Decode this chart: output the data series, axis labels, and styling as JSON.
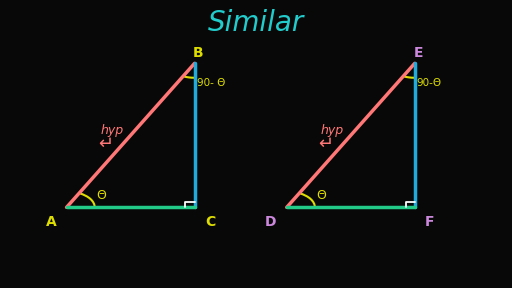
{
  "title": "Similar",
  "title_color": "#22CCCC",
  "title_fontsize": 20,
  "bg_color": "#080808",
  "tri1": {
    "P1": [
      0.13,
      0.28
    ],
    "P2": [
      0.38,
      0.78
    ],
    "P3": [
      0.38,
      0.28
    ],
    "hyp_color": "#FF7777",
    "vert_color": "#22AADD",
    "base_color": "#22CC88",
    "label_P1": "A",
    "label_P2": "B",
    "label_P3": "C",
    "label_color": "#DDDD00",
    "angle_label": "Θ",
    "angle_top_label": "90- Θ",
    "angle_marker_color": "#DDDD00",
    "hyp_label": "hyp",
    "hyp_label_color": "#FF7777"
  },
  "tri2": {
    "P1": [
      0.56,
      0.28
    ],
    "P2": [
      0.81,
      0.78
    ],
    "P3": [
      0.81,
      0.28
    ],
    "hyp_color": "#FF7777",
    "vert_color": "#22AADD",
    "base_color": "#22CC88",
    "label_P1": "D",
    "label_P2": "E",
    "label_P3": "F",
    "label_color": "#CC88DD",
    "angle_label": "Θ",
    "angle_top_label": "90-Θ",
    "angle_marker_color": "#DDDD00",
    "hyp_label": "hyp",
    "hyp_label_color": "#FF7777"
  }
}
